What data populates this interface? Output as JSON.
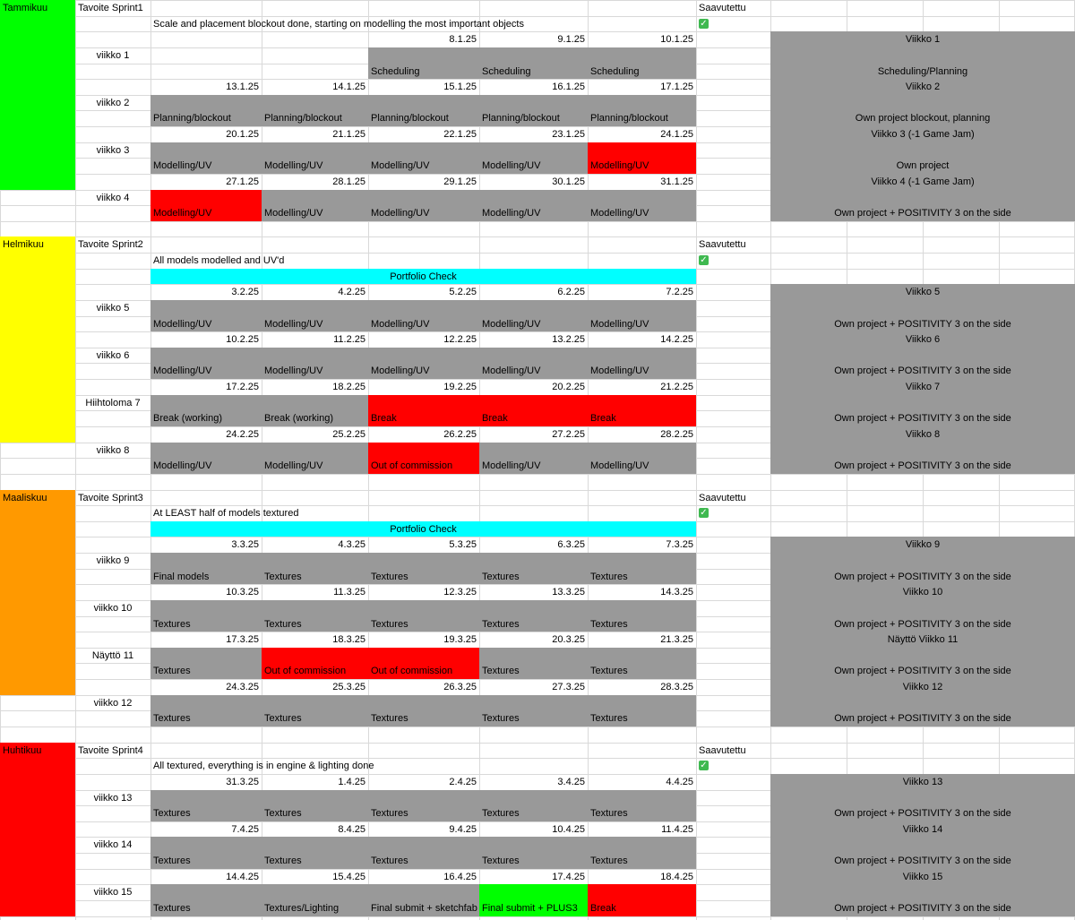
{
  "colors": {
    "gray": "#999999",
    "red": "#ff0000",
    "green": "#00ff00",
    "cyan": "#00ffff",
    "yellow": "#ffff00",
    "orange": "#ff9900",
    "grid": "#d9d9d9"
  },
  "icons": {
    "achieved": "check-mark-icon"
  },
  "months": [
    {
      "name": "Tammikuu",
      "color": "green",
      "goal_label": "Tavoite Sprint1",
      "goal": "Scale and placement blockout done, starting on modelling the most important objects",
      "achieved_label": "Saavutettu",
      "portfolio": "",
      "weeks": [
        {
          "label": "viikko 1",
          "days": [
            {
              "date": "",
              "task": "",
              "color": "none"
            },
            {
              "date": "",
              "task": "",
              "color": "none"
            },
            {
              "date": "8.1.25",
              "task": "Scheduling",
              "color": "gray"
            },
            {
              "date": "9.1.25",
              "task": "Scheduling",
              "color": "gray"
            },
            {
              "date": "10.1.25",
              "task": "Scheduling",
              "color": "gray"
            }
          ],
          "side_title": "Viikko 1",
          "side_task": "Scheduling/Planning"
        },
        {
          "label": "viikko 2",
          "days": [
            {
              "date": "13.1.25",
              "task": "Planning/blockout",
              "color": "gray"
            },
            {
              "date": "14.1.25",
              "task": "Planning/blockout",
              "color": "gray"
            },
            {
              "date": "15.1.25",
              "task": "Planning/blockout",
              "color": "gray"
            },
            {
              "date": "16.1.25",
              "task": "Planning/blockout",
              "color": "gray"
            },
            {
              "date": "17.1.25",
              "task": "Planning/blockout",
              "color": "gray"
            }
          ],
          "side_title": "Viikko 2",
          "side_task": "Own project blockout, planning"
        },
        {
          "label": "viikko 3",
          "days": [
            {
              "date": "20.1.25",
              "task": "Modelling/UV",
              "color": "gray"
            },
            {
              "date": "21.1.25",
              "task": "Modelling/UV",
              "color": "gray"
            },
            {
              "date": "22.1.25",
              "task": "Modelling/UV",
              "color": "gray"
            },
            {
              "date": "23.1.25",
              "task": "Modelling/UV",
              "color": "gray"
            },
            {
              "date": "24.1.25",
              "task": "Modelling/UV",
              "color": "red"
            }
          ],
          "side_title": "Viikko 3 (-1 Game Jam)",
          "side_task": "Own project"
        },
        {
          "label": "viikko 4",
          "days": [
            {
              "date": "27.1.25",
              "task": "Modelling/UV",
              "color": "red"
            },
            {
              "date": "28.1.25",
              "task": "Modelling/UV",
              "color": "gray"
            },
            {
              "date": "29.1.25",
              "task": "Modelling/UV",
              "color": "gray"
            },
            {
              "date": "30.1.25",
              "task": "Modelling/UV",
              "color": "gray"
            },
            {
              "date": "31.1.25",
              "task": "Modelling/UV",
              "color": "gray"
            }
          ],
          "side_title": "Viikko 4 (-1 Game Jam)",
          "side_task": "Own project + POSITIVITY 3 on the side"
        }
      ]
    },
    {
      "name": "Helmikuu",
      "color": "yellow",
      "goal_label": "Tavoite Sprint2",
      "goal": "All models modelled and UV'd",
      "achieved_label": "Saavutettu",
      "portfolio": "Portfolio Check",
      "weeks": [
        {
          "label": "viikko 5",
          "days": [
            {
              "date": "3.2.25",
              "task": "Modelling/UV",
              "color": "gray"
            },
            {
              "date": "4.2.25",
              "task": "Modelling/UV",
              "color": "gray"
            },
            {
              "date": "5.2.25",
              "task": "Modelling/UV",
              "color": "gray"
            },
            {
              "date": "6.2.25",
              "task": "Modelling/UV",
              "color": "gray"
            },
            {
              "date": "7.2.25",
              "task": "Modelling/UV",
              "color": "gray"
            }
          ],
          "side_title": "Viikko 5",
          "side_task": "Own project + POSITIVITY 3 on the side"
        },
        {
          "label": "viikko 6",
          "days": [
            {
              "date": "10.2.25",
              "task": "Modelling/UV",
              "color": "gray"
            },
            {
              "date": "11.2.25",
              "task": "Modelling/UV",
              "color": "gray"
            },
            {
              "date": "12.2.25",
              "task": "Modelling/UV",
              "color": "gray"
            },
            {
              "date": "13.2.25",
              "task": "Modelling/UV",
              "color": "gray"
            },
            {
              "date": "14.2.25",
              "task": "Modelling/UV",
              "color": "gray"
            }
          ],
          "side_title": "Viikko 6",
          "side_task": "Own project + POSITIVITY 3 on the side"
        },
        {
          "label": "Hiihtoloma 7",
          "days": [
            {
              "date": "17.2.25",
              "task": "Break (working)",
              "color": "gray"
            },
            {
              "date": "18.2.25",
              "task": "Break (working)",
              "color": "gray"
            },
            {
              "date": "19.2.25",
              "task": "Break",
              "color": "red"
            },
            {
              "date": "20.2.25",
              "task": "Break",
              "color": "red"
            },
            {
              "date": "21.2.25",
              "task": "Break",
              "color": "red"
            }
          ],
          "side_title": "Viikko 7",
          "side_task": "Own project + POSITIVITY 3 on the side"
        },
        {
          "label": "viikko 8",
          "days": [
            {
              "date": "24.2.25",
              "task": "Modelling/UV",
              "color": "gray"
            },
            {
              "date": "25.2.25",
              "task": "Modelling/UV",
              "color": "gray"
            },
            {
              "date": "26.2.25",
              "task": "Out of commission",
              "color": "red"
            },
            {
              "date": "27.2.25",
              "task": "Modelling/UV",
              "color": "gray"
            },
            {
              "date": "28.2.25",
              "task": "Modelling/UV",
              "color": "gray"
            }
          ],
          "side_title": "Viikko 8",
          "side_task": "Own project + POSITIVITY 3 on the side"
        }
      ]
    },
    {
      "name": "Maaliskuu",
      "color": "orange",
      "goal_label": "Tavoite Sprint3",
      "goal": "At LEAST half of models textured",
      "achieved_label": "Saavutettu",
      "portfolio": "Portfolio Check",
      "weeks": [
        {
          "label": "viikko 9",
          "days": [
            {
              "date": "3.3.25",
              "task": "Final models",
              "color": "gray"
            },
            {
              "date": "4.3.25",
              "task": "Textures",
              "color": "gray"
            },
            {
              "date": "5.3.25",
              "task": "Textures",
              "color": "gray"
            },
            {
              "date": "6.3.25",
              "task": "Textures",
              "color": "gray"
            },
            {
              "date": "7.3.25",
              "task": "Textures",
              "color": "gray"
            }
          ],
          "side_title": "Viikko 9",
          "side_task": "Own project + POSITIVITY 3 on the side"
        },
        {
          "label": "viikko 10",
          "days": [
            {
              "date": "10.3.25",
              "task": "Textures",
              "color": "gray"
            },
            {
              "date": "11.3.25",
              "task": "Textures",
              "color": "gray"
            },
            {
              "date": "12.3.25",
              "task": "Textures",
              "color": "gray"
            },
            {
              "date": "13.3.25",
              "task": "Textures",
              "color": "gray"
            },
            {
              "date": "14.3.25",
              "task": "Textures",
              "color": "gray"
            }
          ],
          "side_title": "Viikko 10",
          "side_task": "Own project + POSITIVITY 3 on the side"
        },
        {
          "label": "Näyttö 11",
          "days": [
            {
              "date": "17.3.25",
              "task": "Textures",
              "color": "gray"
            },
            {
              "date": "18.3.25",
              "task": "Out of commission",
              "color": "red"
            },
            {
              "date": "19.3.25",
              "task": "Out of commission",
              "color": "red"
            },
            {
              "date": "20.3.25",
              "task": "Textures",
              "color": "gray"
            },
            {
              "date": "21.3.25",
              "task": "Textures",
              "color": "gray"
            }
          ],
          "side_title": "Näyttö Viikko 11",
          "side_task": "Own project + POSITIVITY 3 on the side"
        },
        {
          "label": "viikko 12",
          "days": [
            {
              "date": "24.3.25",
              "task": "Textures",
              "color": "gray"
            },
            {
              "date": "25.3.25",
              "task": "Textures",
              "color": "gray"
            },
            {
              "date": "26.3.25",
              "task": "Textures",
              "color": "gray"
            },
            {
              "date": "27.3.25",
              "task": "Textures",
              "color": "gray"
            },
            {
              "date": "28.3.25",
              "task": "Textures",
              "color": "gray"
            }
          ],
          "side_title": "Viikko 12",
          "side_task": "Own project + POSITIVITY 3 on the side"
        }
      ]
    },
    {
      "name": "Huhtikuu",
      "color": "red",
      "goal_label": "Tavoite Sprint4",
      "goal": "All textured, everything is in engine & lighting done",
      "achieved_label": "Saavutettu",
      "portfolio": "",
      "weeks": [
        {
          "label": "viikko 13",
          "days": [
            {
              "date": "31.3.25",
              "task": "Textures",
              "color": "gray"
            },
            {
              "date": "1.4.25",
              "task": "Textures",
              "color": "gray"
            },
            {
              "date": "2.4.25",
              "task": "Textures",
              "color": "gray"
            },
            {
              "date": "3.4.25",
              "task": "Textures",
              "color": "gray"
            },
            {
              "date": "4.4.25",
              "task": "Textures",
              "color": "gray"
            }
          ],
          "side_title": "Viikko 13",
          "side_task": "Own project + POSITIVITY 3 on the side"
        },
        {
          "label": "viikko 14",
          "days": [
            {
              "date": "7.4.25",
              "task": "Textures",
              "color": "gray"
            },
            {
              "date": "8.4.25",
              "task": "Textures",
              "color": "gray"
            },
            {
              "date": "9.4.25",
              "task": "Textures",
              "color": "gray"
            },
            {
              "date": "10.4.25",
              "task": "Textures",
              "color": "gray"
            },
            {
              "date": "11.4.25",
              "task": "Textures",
              "color": "gray"
            }
          ],
          "side_title": "Viikko 14",
          "side_task": "Own project + POSITIVITY 3 on the side"
        },
        {
          "label": "viikko 15",
          "days": [
            {
              "date": "14.4.25",
              "task": "Textures",
              "color": "gray"
            },
            {
              "date": "15.4.25",
              "task": "Textures/Lighting",
              "color": "gray"
            },
            {
              "date": "16.4.25",
              "task": "Final submit + sketchfab",
              "color": "gray"
            },
            {
              "date": "17.4.25",
              "task": "Final submit + PLUS3",
              "color": "green"
            },
            {
              "date": "18.4.25",
              "task": "Break",
              "color": "red"
            }
          ],
          "side_title": "Viikko 15",
          "side_task": "Own project + POSITIVITY 3 on the side"
        }
      ]
    }
  ]
}
